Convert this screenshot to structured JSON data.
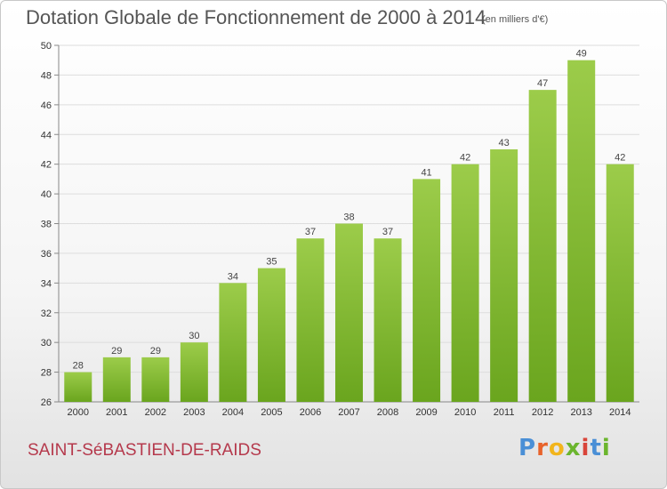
{
  "chart_data": {
    "type": "bar",
    "title": "Dotation Globale de Fonctionnement de 2000 à 2014",
    "subtitle": "(en milliers d'€)",
    "xlabel": "",
    "ylabel": "",
    "categories": [
      "2000",
      "2001",
      "2002",
      "2003",
      "2004",
      "2005",
      "2006",
      "2007",
      "2008",
      "2009",
      "2010",
      "2011",
      "2012",
      "2013",
      "2014"
    ],
    "values": [
      28,
      29,
      29,
      30,
      34,
      35,
      37,
      38,
      37,
      41,
      42,
      43,
      47,
      49,
      42
    ],
    "ylim": [
      26,
      50
    ],
    "yticks": [
      26,
      28,
      30,
      32,
      34,
      36,
      38,
      40,
      42,
      44,
      46,
      48,
      50
    ],
    "grid": true,
    "bar_color_top": "#9ccc4a",
    "bar_color_bottom": "#6aa51e"
  },
  "footer": {
    "commune": "SAINT-SéBASTIEN-DE-RAIDS",
    "logo_text": "Proxiti",
    "logo_colors": [
      "#4a8fd6",
      "#e8632b",
      "#f2b51c",
      "#6bb52e",
      "#d9443a",
      "#4a8fd6",
      "#6bb52e"
    ]
  }
}
